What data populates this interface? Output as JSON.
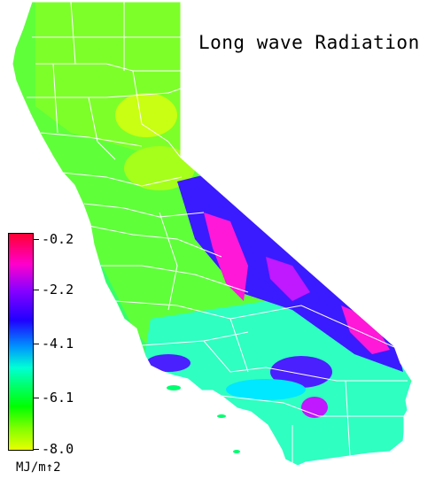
{
  "title": "Long wave Radiation",
  "legend": {
    "ticks": [
      "-0.2",
      "-2.2",
      "-4.1",
      "-6.1",
      "-8.0"
    ],
    "units": "MJ/m↑2",
    "colors": [
      "#ff0033",
      "#ff00cc",
      "#8a00ff",
      "#2000ff",
      "#0090ff",
      "#00ffd5",
      "#00ff70",
      "#00ff00",
      "#80ff00",
      "#e8ff00"
    ]
  },
  "map_colors": {
    "north": "#7dff2a",
    "central_valley": "#a6ff1a",
    "coast": "#35ff6a",
    "sierra": "#3a1bff",
    "sierra_peaks": "#ff18d8",
    "desert": "#2fffc0",
    "county_lines": "#ffffff"
  }
}
